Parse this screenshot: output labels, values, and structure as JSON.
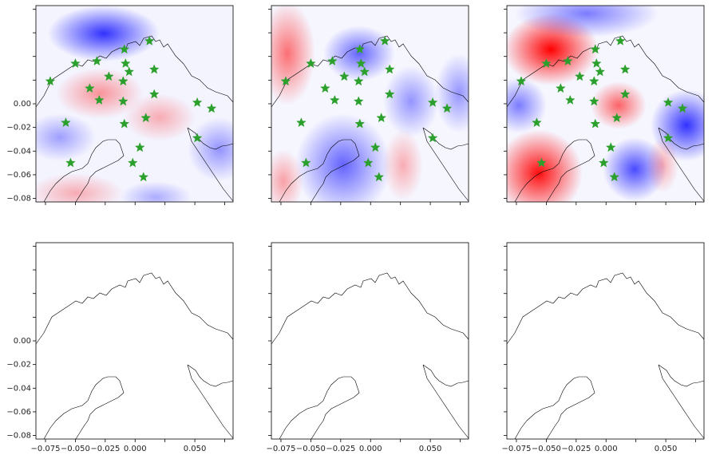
{
  "chart_data": [
    {
      "type": "scatter",
      "xlim": [
        -0.083,
        0.082
      ],
      "ylim": [
        -0.083,
        0.083
      ],
      "xticks": [
        -0.075,
        -0.05,
        -0.025,
        0,
        0.025,
        0.05,
        0.075
      ],
      "yticks": [
        {
          "value": -0.08,
          "label": "−0.08"
        },
        {
          "value": -0.06,
          "label": "−0.06"
        },
        {
          "value": -0.04,
          "label": "−0.04"
        },
        {
          "value": -0.02,
          "label": "−0.02"
        },
        {
          "value": 0,
          "label": "0.00"
        },
        0.02,
        0.04,
        0.06,
        0.08
      ],
      "series": [
        {
          "color": "#2ca02c",
          "marker": "star",
          "x": [
            -0.071,
            -0.05,
            -0.032,
            -0.022,
            -0.038,
            -0.03,
            -0.009,
            -0.008,
            -0.005,
            -0.01,
            0.012,
            0.016,
            0.016,
            -0.01,
            0.052,
            0.064,
            -0.058,
            -0.009,
            0.009,
            0.052,
            0.004,
            -0.054,
            -0.002,
            0.007
          ],
          "values": [
            0.019,
            0.034,
            0.036,
            0.023,
            0.013,
            0.003,
            0.046,
            0.034,
            0.027,
            0.019,
            0.053,
            0.029,
            0.008,
            0.002,
            0.001,
            -0.004,
            -0.016,
            -0.017,
            -0.012,
            -0.029,
            -0.037,
            -0.05,
            -0.05,
            -0.062
          ]
        }
      ]
    },
    {
      "type": "scatter",
      "xlim": [
        -0.083,
        0.082
      ],
      "ylim": [
        -0.083,
        0.083
      ],
      "xticks": [
        -0.075,
        -0.05,
        -0.025,
        0,
        0.025,
        0.05,
        0.075
      ],
      "yticks": [
        -0.08,
        -0.06,
        -0.04,
        -0.02,
        0,
        0.02,
        0.04,
        0.06,
        0.08
      ],
      "series": [
        {
          "color": "#2ca02c",
          "marker": "star",
          "x": [
            -0.071,
            -0.05,
            -0.032,
            -0.022,
            -0.038,
            -0.03,
            -0.009,
            -0.008,
            -0.005,
            -0.01,
            0.012,
            0.016,
            0.016,
            -0.01,
            0.052,
            0.064,
            -0.058,
            -0.009,
            0.009,
            0.052,
            0.004,
            -0.054,
            -0.002,
            0.007
          ],
          "values": [
            0.019,
            0.034,
            0.036,
            0.023,
            0.013,
            0.003,
            0.046,
            0.034,
            0.027,
            0.019,
            0.053,
            0.029,
            0.008,
            0.002,
            0.001,
            -0.004,
            -0.016,
            -0.017,
            -0.012,
            -0.029,
            -0.037,
            -0.05,
            -0.05,
            -0.062
          ]
        }
      ]
    },
    {
      "type": "scatter",
      "xlim": [
        -0.083,
        0.082
      ],
      "ylim": [
        -0.083,
        0.083
      ],
      "xticks": [
        -0.075,
        -0.05,
        -0.025,
        0,
        0.025,
        0.05,
        0.075
      ],
      "yticks": [
        -0.08,
        -0.06,
        -0.04,
        -0.02,
        0,
        0.02,
        0.04,
        0.06,
        0.08
      ],
      "series": [
        {
          "color": "#2ca02c",
          "marker": "star",
          "x": [
            -0.071,
            -0.05,
            -0.032,
            -0.022,
            -0.038,
            -0.03,
            -0.009,
            -0.008,
            -0.005,
            -0.01,
            0.012,
            0.016,
            0.016,
            -0.01,
            0.052,
            0.064,
            -0.058,
            -0.009,
            0.009,
            0.052,
            0.004,
            -0.054,
            -0.002,
            0.007
          ],
          "values": [
            0.019,
            0.034,
            0.036,
            0.023,
            0.013,
            0.003,
            0.046,
            0.034,
            0.027,
            0.019,
            0.053,
            0.029,
            0.008,
            0.002,
            0.001,
            -0.004,
            -0.016,
            -0.017,
            -0.012,
            -0.029,
            -0.037,
            -0.05,
            -0.05,
            -0.062
          ]
        }
      ]
    },
    {
      "type": "map",
      "xlim": [
        -0.083,
        0.082
      ],
      "ylim": [
        -0.083,
        0.083
      ],
      "xticks": [
        {
          "value": -0.075,
          "label": "−0.075"
        },
        {
          "value": -0.05,
          "label": "−0.050"
        },
        {
          "value": -0.025,
          "label": "−0.025"
        },
        {
          "value": 0,
          "label": "0.000"
        },
        0.025,
        {
          "value": 0.05,
          "label": "0.050"
        },
        0.075
      ],
      "yticks": [
        {
          "value": -0.08,
          "label": "−0.08"
        },
        {
          "value": -0.06,
          "label": "−0.06"
        },
        {
          "value": -0.04,
          "label": "−0.04"
        },
        {
          "value": -0.02,
          "label": "−0.02"
        },
        {
          "value": 0,
          "label": "0.00"
        },
        0.02,
        0.04,
        0.06,
        0.08
      ]
    },
    {
      "type": "map",
      "xlim": [
        -0.083,
        0.082
      ],
      "ylim": [
        -0.083,
        0.083
      ],
      "xticks": [
        {
          "value": -0.075,
          "label": "−0.075"
        },
        {
          "value": -0.05,
          "label": "−0.050"
        },
        {
          "value": -0.025,
          "label": "−0.025"
        },
        {
          "value": 0,
          "label": "0.000"
        },
        0.025,
        {
          "value": 0.05,
          "label": "0.050"
        },
        0.075
      ],
      "yticks": [
        -0.08,
        -0.06,
        -0.04,
        -0.02,
        0,
        0.02,
        0.04,
        0.06,
        0.08
      ]
    },
    {
      "type": "map",
      "xlim": [
        -0.083,
        0.082
      ],
      "ylim": [
        -0.083,
        0.083
      ],
      "xticks": [
        {
          "value": -0.075,
          "label": "−0.075"
        },
        {
          "value": -0.05,
          "label": "−0.050"
        },
        {
          "value": -0.025,
          "label": "−0.025"
        },
        {
          "value": 0,
          "label": "0.000"
        },
        0.025,
        {
          "value": 0.05,
          "label": "0.050"
        },
        0.075
      ],
      "yticks": [
        -0.08,
        -0.06,
        -0.04,
        -0.02,
        0,
        0.02,
        0.04,
        0.06,
        0.08
      ]
    }
  ]
}
